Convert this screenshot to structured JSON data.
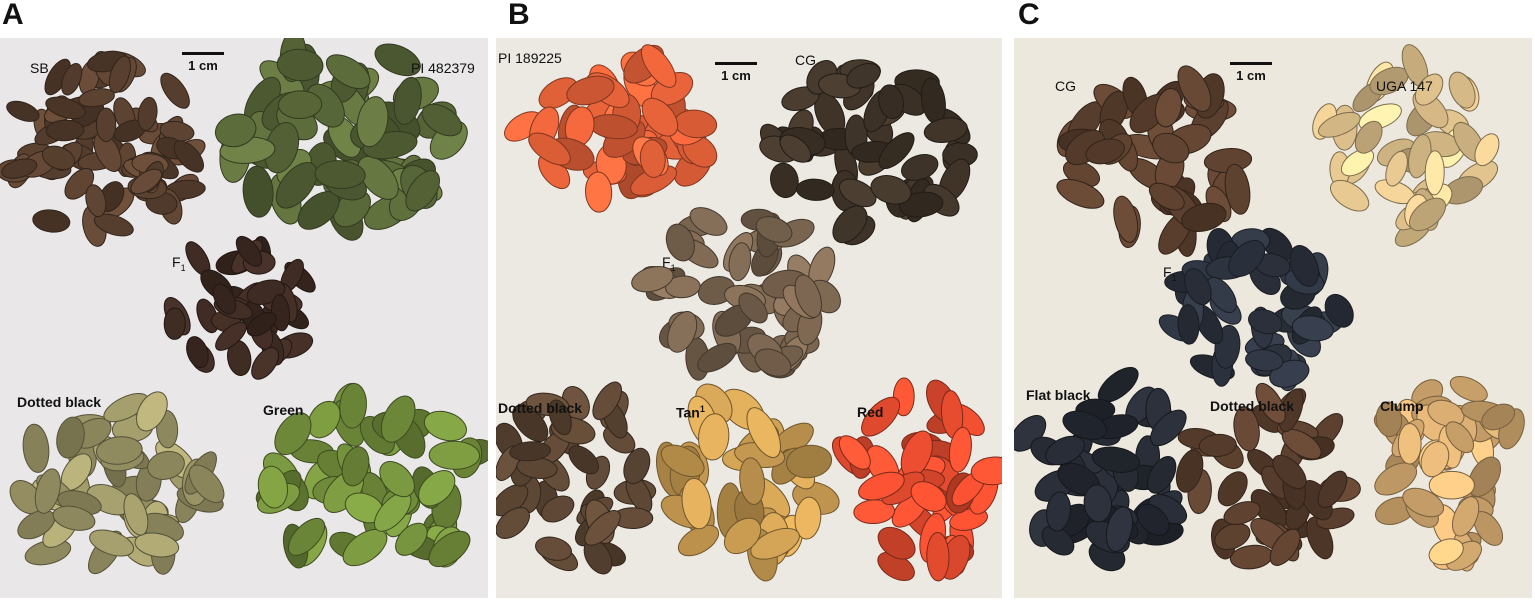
{
  "panels": [
    {
      "letter": "A",
      "scale_label": "1 cm",
      "labels": {
        "sb": "SB",
        "pi": "PI 482379",
        "f1": "F",
        "f1_sub": "1",
        "dotted": "Dotted black",
        "green": "Green"
      }
    },
    {
      "letter": "B",
      "scale_label": "1 cm",
      "labels": {
        "pi": "PI 189225",
        "cg": "CG",
        "f1": "F",
        "f1_sub": "1",
        "dotted": "Dotted black",
        "tan": "Tan",
        "tan_sup": "1",
        "red": "Red"
      }
    },
    {
      "letter": "C",
      "scale_label": "1 cm",
      "labels": {
        "cg": "CG",
        "uga": "UGA 147",
        "f1": "F",
        "f1_sub": "1",
        "flat": "Flat black",
        "dotted": "Dotted black",
        "clump": "Clump"
      }
    }
  ],
  "colors": {
    "background_a": "#e9e7e8",
    "background_b": "#ece8e2",
    "background_c": "#ede8de",
    "sb_brown": "#5a4130",
    "pi_green": "#5b6a3a",
    "f1_dark": "#3d2a22",
    "dotted_olive": "#9a9466",
    "green_seed": "#6f8a3a",
    "orange_seed": "#e8633a",
    "cg_dark": "#3e3328",
    "f1b_tan": "#7a6550",
    "dotted_b": "#5a4533",
    "tan_seed": "#c99c52",
    "red_seed": "#e04a2e",
    "uga_cream": "#e2c48e",
    "f1c_slate": "#2e3440",
    "flat_black": "#262a33",
    "dotted_c": "#5a3f2e",
    "clump_tan": "#d8ad72"
  }
}
